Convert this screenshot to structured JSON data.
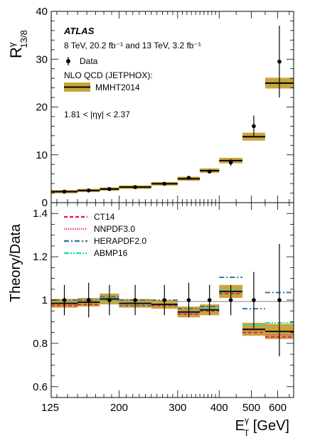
{
  "chart_data": [
    {
      "type": "scatter",
      "panel": "ratio",
      "ylabel_main": "R",
      "ylabel_sup": "γ",
      "ylabel_sub": "13/8",
      "xscale": "log",
      "xlim": [
        125,
        670
      ],
      "ylim": [
        0,
        40
      ],
      "yticks": [
        0,
        10,
        20,
        30,
        40
      ],
      "atlas_label": "ATLAS",
      "lumi_text": "8 TeV, 20.2 fb⁻¹ and 13 TeV, 3.2 fb⁻¹",
      "legend": {
        "data": "Data",
        "theory_header": "NLO QCD (JETPHOX):",
        "theory": "MMHT2014"
      },
      "region_text": "1.81 < |ηγ| < 2.37",
      "legend_position": "top-left",
      "bins": [
        {
          "lo": 125,
          "hi": 150,
          "data": 2.3,
          "err": 0.15,
          "theory": 2.3,
          "unc": 0.12
        },
        {
          "lo": 150,
          "hi": 175,
          "data": 2.55,
          "err": 0.18,
          "theory": 2.55,
          "unc": 0.12
        },
        {
          "lo": 175,
          "hi": 200,
          "data": 2.85,
          "err": 0.2,
          "theory": 2.85,
          "unc": 0.12
        },
        {
          "lo": 200,
          "hi": 250,
          "data": 3.25,
          "err": 0.2,
          "theory": 3.25,
          "unc": 0.15
        },
        {
          "lo": 250,
          "hi": 300,
          "data": 3.95,
          "err": 0.25,
          "theory": 3.95,
          "unc": 0.15
        },
        {
          "lo": 300,
          "hi": 350,
          "data": 5.2,
          "err": 0.3,
          "theory": 5.0,
          "unc": 0.2
        },
        {
          "lo": 350,
          "hi": 400,
          "data": 6.5,
          "err": 0.4,
          "theory": 6.7,
          "unc": 0.25
        },
        {
          "lo": 400,
          "hi": 470,
          "data": 8.4,
          "err": 0.7,
          "theory": 8.8,
          "unc": 0.35
        },
        {
          "lo": 470,
          "hi": 550,
          "data": 16.0,
          "err": 2.2,
          "theory": 13.8,
          "unc": 0.6
        },
        {
          "lo": 550,
          "hi": 670,
          "data": 29.5,
          "err": 7.5,
          "theory": 25.0,
          "unc": 0.9
        }
      ]
    },
    {
      "type": "scatter",
      "panel": "theory_over_data",
      "ylabel": "Theory/Data",
      "xlabel_main": "E",
      "xlabel_sup": "γ",
      "xlabel_sub": "T",
      "xlabel_unit": " [GeV]",
      "xscale": "log",
      "xlim": [
        125,
        670
      ],
      "ylim": [
        0.55,
        1.45
      ],
      "yticks": [
        0.6,
        0.8,
        1,
        1.2,
        1.4
      ],
      "ytick_labels": [
        "0.6",
        "0.8",
        "1",
        "1.2",
        "1.4"
      ],
      "xticks": [
        125,
        200,
        300,
        400,
        500,
        600
      ],
      "xtick_labels": [
        "125",
        "200",
        "300",
        "400",
        "500",
        "600"
      ],
      "legend_position": "top-left",
      "colors": {
        "CT14": "#e0224e",
        "NNPDF3.0": "#e84a8c",
        "HERAPDF2.0": "#3a76a6",
        "ABMP16": "#28e0a4",
        "MMHT": "#111111",
        "band": "#c8a53b"
      },
      "series": [
        {
          "name": "CT14",
          "style": "dashed",
          "values": [
            0.975,
            0.98,
            1.0,
            0.975,
            0.975,
            0.935,
            0.95,
            1.03,
            0.85,
            0.83
          ]
        },
        {
          "name": "NNPDF3.0",
          "style": "dotted",
          "values": [
            0.985,
            0.99,
            1.0,
            0.985,
            0.98,
            0.94,
            0.955,
            1.04,
            0.86,
            0.84
          ]
        },
        {
          "name": "HERAPDF2.0",
          "style": "dashdot",
          "values": [
            1.0,
            1.0,
            1.015,
            1.0,
            1.0,
            0.96,
            0.97,
            1.105,
            0.96,
            1.035
          ]
        },
        {
          "name": "ABMP16",
          "style": "dashdotdot",
          "values": [
            0.985,
            0.99,
            1.0,
            0.98,
            0.98,
            0.945,
            0.96,
            1.045,
            0.885,
            0.895
          ]
        }
      ],
      "mmht_values": [
        0.985,
        0.99,
        1.005,
        0.985,
        0.98,
        0.945,
        0.955,
        1.04,
        0.865,
        0.855
      ],
      "band_halfwidth": [
        0.02,
        0.02,
        0.025,
        0.02,
        0.02,
        0.025,
        0.025,
        0.03,
        0.03,
        0.035
      ],
      "data_values": [
        1.0,
        1.0,
        1.0,
        1.0,
        1.0,
        1.0,
        1.0,
        1.0,
        1.0,
        1.0
      ],
      "data_err": [
        0.07,
        0.08,
        0.07,
        0.07,
        0.07,
        0.08,
        0.07,
        0.07,
        0.13,
        0.26
      ]
    }
  ]
}
